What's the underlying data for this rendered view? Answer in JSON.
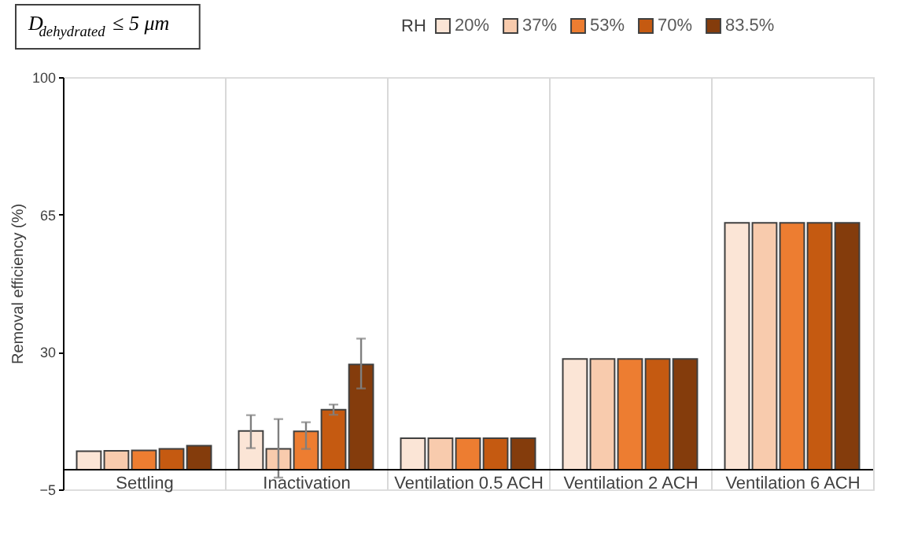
{
  "chart_data": {
    "type": "bar",
    "title": "D$_{dehydrated}$ ≤ 5 μm",
    "categories": [
      "Settling",
      "Inactivation",
      "Ventilation 0.5 ACH",
      "Ventilation 2 ACH",
      "Ventilation 6 ACH"
    ],
    "legend_title": "RH",
    "ylabel": "Removal efficiency (%)",
    "series": [
      {
        "name": "20%",
        "color": "#fbe5d6",
        "values": [
          4.7,
          9.9,
          8.0,
          28.2,
          62.9
        ],
        "errors": [
          null,
          [
            5.5,
            13.9
          ],
          null,
          null,
          null
        ]
      },
      {
        "name": "37%",
        "color": "#f8cbad",
        "values": [
          4.8,
          5.3,
          8.0,
          28.2,
          62.9
        ],
        "errors": [
          null,
          [
            -2.0,
            12.9
          ],
          null,
          null,
          null
        ]
      },
      {
        "name": "53%",
        "color": "#ed7d31",
        "values": [
          4.9,
          9.8,
          8.0,
          28.2,
          62.9
        ],
        "errors": [
          null,
          [
            5.3,
            12.1
          ],
          null,
          null,
          null
        ]
      },
      {
        "name": "70%",
        "color": "#c55a11",
        "values": [
          5.3,
          15.3,
          8.0,
          28.2,
          62.9
        ],
        "errors": [
          null,
          [
            14.0,
            16.6
          ],
          null,
          null,
          null
        ]
      },
      {
        "name": "83.5%",
        "color": "#843c0c",
        "values": [
          6.1,
          26.8,
          8.0,
          28.2,
          62.9
        ],
        "errors": [
          null,
          [
            20.7,
            33.4
          ],
          null,
          null,
          null
        ]
      }
    ],
    "ylim": [
      -5,
      100
    ],
    "yticks": [
      -5,
      30,
      65,
      100
    ],
    "grid": "x",
    "legend": "top"
  }
}
